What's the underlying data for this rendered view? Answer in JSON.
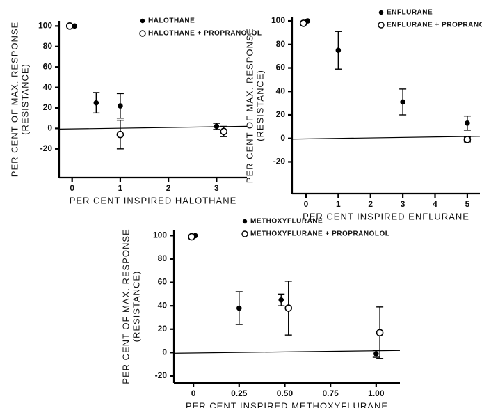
{
  "chart_data": [
    {
      "type": "scatter",
      "y_label": [
        "PER CENT OF MAX. RESPONSE",
        "(RESISTANCE)"
      ],
      "x_label": "PER CENT INSPIRED HALOTHANE",
      "xlim": [
        -0.27,
        3.63
      ],
      "ylim": [
        -48,
        105
      ],
      "xticks": [
        0,
        1,
        2,
        3
      ],
      "yticks": [
        -20,
        0,
        20,
        40,
        60,
        80,
        100
      ],
      "series": [
        {
          "name": "HALOTHANE",
          "filled": true,
          "color": "#000000",
          "x": [
            0.05,
            0.5,
            1,
            3
          ],
          "values": [
            100,
            25,
            22,
            2
          ],
          "errors": [
            null,
            10,
            12,
            3
          ]
        },
        {
          "name": "HALOTHANE + PROPRANOLOL",
          "filled": false,
          "color": "#000000",
          "x": [
            -0.05,
            1,
            3.15
          ],
          "values": [
            100,
            -6,
            -3
          ],
          "errors": [
            null,
            14,
            5
          ]
        }
      ]
    },
    {
      "type": "scatter",
      "y_label": [
        "PER CENT OF MAX. RESPONSE",
        "(RESISTANCE)"
      ],
      "x_label": "PER CENT INSPIRED ENFLURANE",
      "xlim": [
        -0.43,
        5.39
      ],
      "ylim": [
        -47,
        103
      ],
      "xticks": [
        0,
        1,
        2,
        3,
        4,
        5
      ],
      "yticks": [
        -20,
        0,
        20,
        40,
        60,
        80,
        100
      ],
      "series": [
        {
          "name": "ENFLURANE",
          "filled": true,
          "color": "#000000",
          "x": [
            0.05,
            1,
            3,
            5
          ],
          "values": [
            100,
            75,
            31,
            13
          ],
          "errors": [
            null,
            16,
            11,
            6
          ]
        },
        {
          "name": "ENFLURANE + PROPRANOLOL",
          "filled": false,
          "color": "#000000",
          "x": [
            -0.08,
            5
          ],
          "values": [
            98,
            -1
          ],
          "errors": [
            null,
            2
          ]
        }
      ]
    },
    {
      "type": "scatter",
      "y_label": [
        "PER CENT OF MAX. RESPONSE",
        "(RESISTANCE)"
      ],
      "x_label": "PER CENT  INSPIRED METHOXYFLURANE",
      "xlim": [
        -0.107,
        1.13
      ],
      "ylim": [
        -26,
        105
      ],
      "xticks": [
        0,
        0.25,
        {
          "value": 0.5,
          "label": "0.50"
        },
        0.75,
        {
          "value": 1,
          "label": "1.00"
        }
      ],
      "yticks": [
        -20,
        0,
        20,
        40,
        60,
        80,
        100
      ],
      "series": [
        {
          "name": "METHOXYFLURANE",
          "filled": true,
          "color": "#000000",
          "x": [
            0.01,
            0.25,
            0.48,
            1.0
          ],
          "values": [
            100,
            38,
            45,
            -1
          ],
          "errors": [
            null,
            14,
            5,
            3
          ]
        },
        {
          "name": "METHOXYFLURANE + PROPRANOLOL",
          "filled": false,
          "color": "#000000",
          "x": [
            -0.01,
            0.52,
            1.02
          ],
          "values": [
            99,
            38,
            17
          ],
          "errors": [
            null,
            23,
            22
          ]
        }
      ]
    }
  ]
}
